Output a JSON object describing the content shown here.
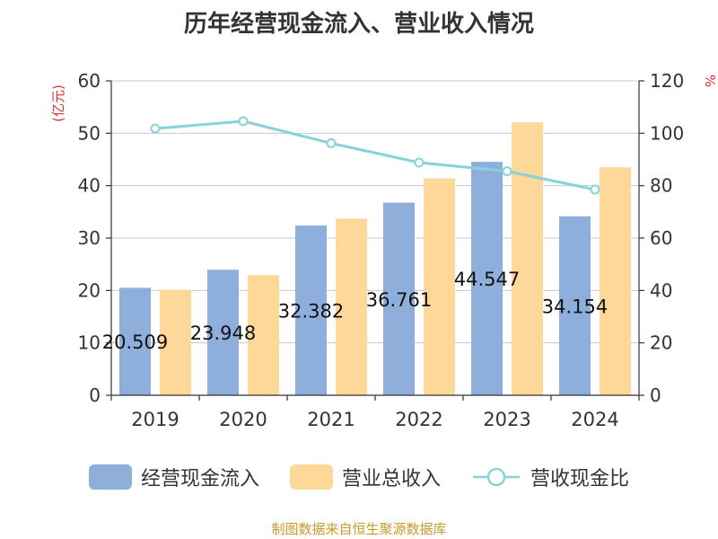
{
  "chart_data": {
    "type": "bar",
    "title": "历年经营现金流入、营业收入情况",
    "categories": [
      "2019",
      "2020",
      "2021",
      "2022",
      "2023",
      "2024"
    ],
    "series": [
      {
        "name": "经营现金流入",
        "axis": "left",
        "color": "#8eaedc",
        "values": [
          20.509,
          23.948,
          32.382,
          36.761,
          44.547,
          34.154
        ],
        "labels": [
          "20.509",
          "23.948",
          "32.382",
          "36.761",
          "44.547",
          "34.154"
        ]
      },
      {
        "name": "营业总收入",
        "axis": "left",
        "color": "#fdd899",
        "values": [
          20.1,
          22.9,
          33.7,
          41.4,
          52.1,
          43.5
        ]
      },
      {
        "name": "营收现金比",
        "axis": "right",
        "type": "line",
        "color": "#86d3d9",
        "values": [
          101.8,
          104.6,
          96.2,
          88.8,
          85.5,
          78.5
        ]
      }
    ],
    "ylabel": "(亿元)",
    "y2label": "%",
    "ylim": [
      0,
      60
    ],
    "y2lim": [
      0,
      120
    ],
    "yticks": [
      "0",
      "10",
      "20",
      "30",
      "40",
      "50",
      "60"
    ],
    "y2ticks": [
      "0",
      "20",
      "40",
      "60",
      "80",
      "100",
      "120"
    ],
    "grid": true,
    "legend": "bottom-center"
  },
  "source": "制图数据来自恒生聚源数据库",
  "colors": {
    "axis_label": "#e03030",
    "text": "#333333",
    "grid": "#c8c8c8"
  }
}
